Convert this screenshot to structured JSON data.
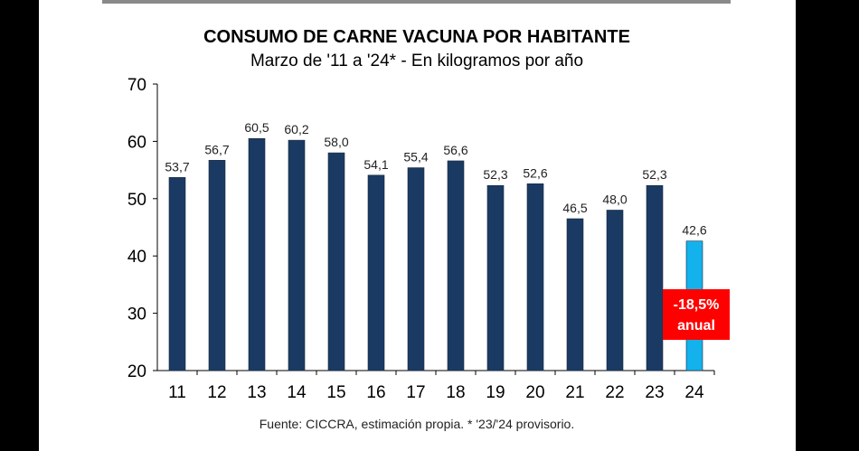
{
  "chart_data": {
    "type": "bar",
    "title": "CONSUMO DE CARNE VACUNA POR HABITANTE",
    "subtitle": "Marzo de '11 a '24* - En kilogramos por año",
    "categories": [
      "11",
      "12",
      "13",
      "14",
      "15",
      "16",
      "17",
      "18",
      "19",
      "20",
      "21",
      "22",
      "23",
      "24"
    ],
    "values": [
      53.7,
      56.7,
      60.5,
      60.2,
      58.0,
      54.1,
      55.4,
      56.6,
      52.3,
      52.6,
      46.5,
      48.0,
      52.3,
      42.6
    ],
    "value_labels": [
      "53,7",
      "56,7",
      "60,5",
      "60,2",
      "58,0",
      "54,1",
      "55,4",
      "56,6",
      "52,3",
      "52,6",
      "46,5",
      "48,0",
      "52,3",
      "42,6"
    ],
    "ylim": [
      20,
      70
    ],
    "yticks": [
      "20",
      "30",
      "40",
      "50",
      "60",
      "70"
    ],
    "xlabel": "",
    "ylabel": "",
    "annotation": {
      "line1": "-18,5%",
      "line2": "anual"
    },
    "source": "Fuente: CICCRA, estimación propia. * '23/'24 provisorio.",
    "colors": {
      "bar": "#1b3a63",
      "highlight": "#13b2ec",
      "annotation": "#ff0000"
    }
  }
}
